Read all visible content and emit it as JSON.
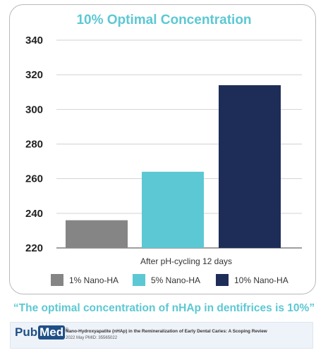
{
  "chart_data": {
    "type": "bar",
    "title": "10% Optimal Concentration",
    "categories": [
      "1% Nano-HA",
      "5% Nano-HA",
      "10% Nano-HA"
    ],
    "values": [
      236,
      264,
      314
    ],
    "colors": [
      "#858585",
      "#5cc8d3",
      "#1e2d58"
    ],
    "xlabel": "After pH-cycling 12 days",
    "ylabel": "",
    "ylim": [
      220,
      340
    ],
    "yticks": [
      340,
      320,
      300,
      280,
      260,
      240,
      220
    ],
    "grid": true,
    "legend": "bottom"
  },
  "quote": "“The optimal concentration of nHAp in dentifrices is 10%”",
  "citation": {
    "logo_pub": "Pub",
    "logo_med": "Med",
    "logo_reg": "®",
    "title": "Nano-Hydroxyapatite (nHAp) in the Remineralization of Early Dental Caries: A Scoping Review",
    "meta": "2022 May PMID: 35565022"
  }
}
